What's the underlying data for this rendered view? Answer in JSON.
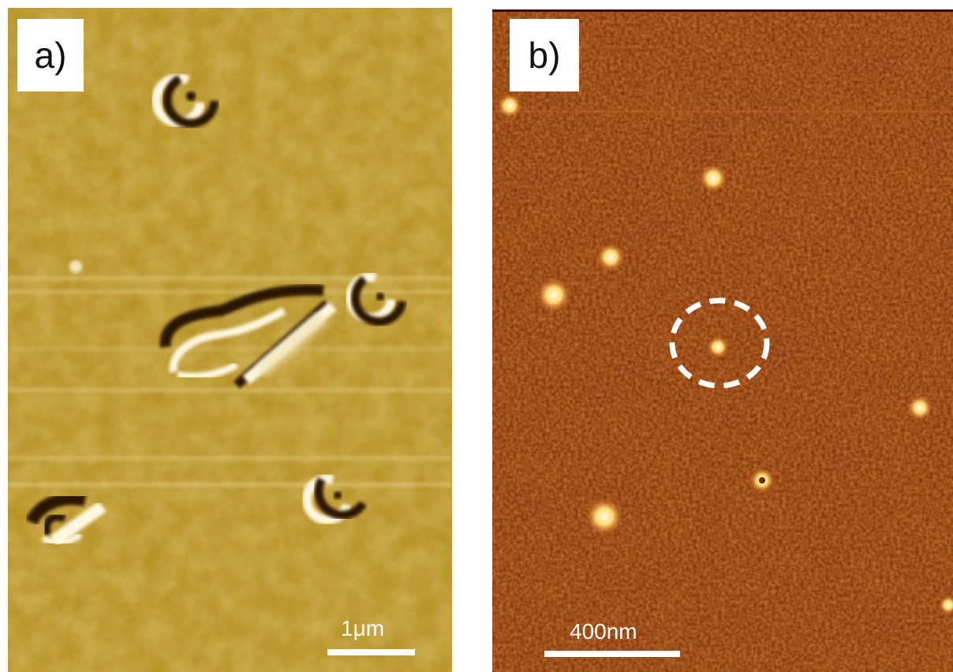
{
  "panels": [
    {
      "label": "a)",
      "scale_bar_text": "1μm",
      "colors": {
        "background": "#b8901e",
        "shadow": "#2a1400",
        "highlight": "#fff8e0"
      }
    },
    {
      "label": "b)",
      "scale_bar_text": "400nm",
      "colors": {
        "background": "#7a2104",
        "particle": "#ffe8a0",
        "circle": "#ffffff"
      }
    }
  ]
}
